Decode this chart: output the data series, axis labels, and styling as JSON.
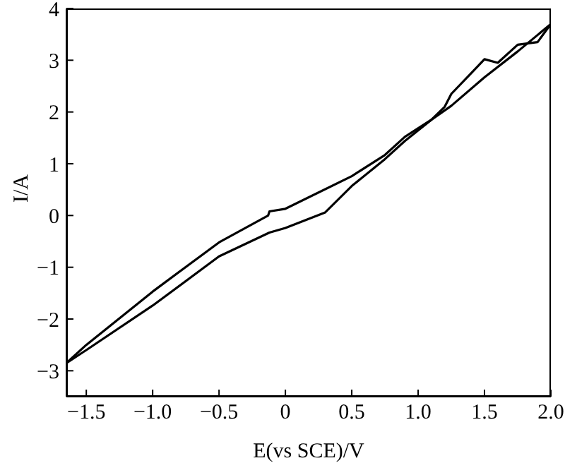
{
  "chart_data": {
    "type": "line",
    "xlabel": "E(vs SCE)/V",
    "ylabel": "I/A",
    "xlim": [
      -1.65,
      2.0
    ],
    "xticks": [
      {
        "value": -1.5,
        "label": "−1.5"
      },
      {
        "value": -1,
        "label": "−1.0"
      },
      {
        "value": -0.5,
        "label": "−0.5"
      },
      0,
      0.5,
      {
        "value": 1,
        "label": "1.0"
      },
      1.5,
      {
        "value": 2,
        "label": "2.0"
      }
    ],
    "ylim": [
      -3.5,
      4
    ],
    "yticks": [
      {
        "value": -3,
        "label": "−3"
      },
      {
        "value": -2,
        "label": "−2"
      },
      {
        "value": -1,
        "label": "−1"
      },
      0,
      1,
      2,
      3,
      4
    ],
    "marker": "none",
    "line_style": "solid",
    "series": [
      {
        "color": "#000000",
        "x": [
          -1.65,
          -1.5,
          -1.0,
          -0.5,
          -0.13,
          -0.12,
          0,
          0.5,
          0.75,
          0.9,
          1.1,
          1.25,
          1.5,
          1.75,
          2.0
        ],
        "values": [
          -2.85,
          -2.5,
          -1.47,
          -0.52,
          0.0,
          0.08,
          0.13,
          0.76,
          1.17,
          1.52,
          1.85,
          2.12,
          2.67,
          3.17,
          3.7
        ]
      },
      {
        "color": "#000000",
        "x": [
          -1.65,
          -1.5,
          -1.0,
          -0.5,
          -0.12,
          0,
          0.3,
          0.5,
          0.75,
          0.9,
          1.1,
          1.2,
          1.25,
          1.4,
          1.5,
          1.6,
          1.75,
          1.9,
          2.0
        ],
        "values": [
          -2.85,
          -2.6,
          -1.74,
          -0.79,
          -0.33,
          -0.24,
          0.06,
          0.57,
          1.09,
          1.44,
          1.85,
          2.1,
          2.35,
          2.75,
          3.02,
          2.95,
          3.3,
          3.35,
          3.7
        ]
      }
    ]
  }
}
